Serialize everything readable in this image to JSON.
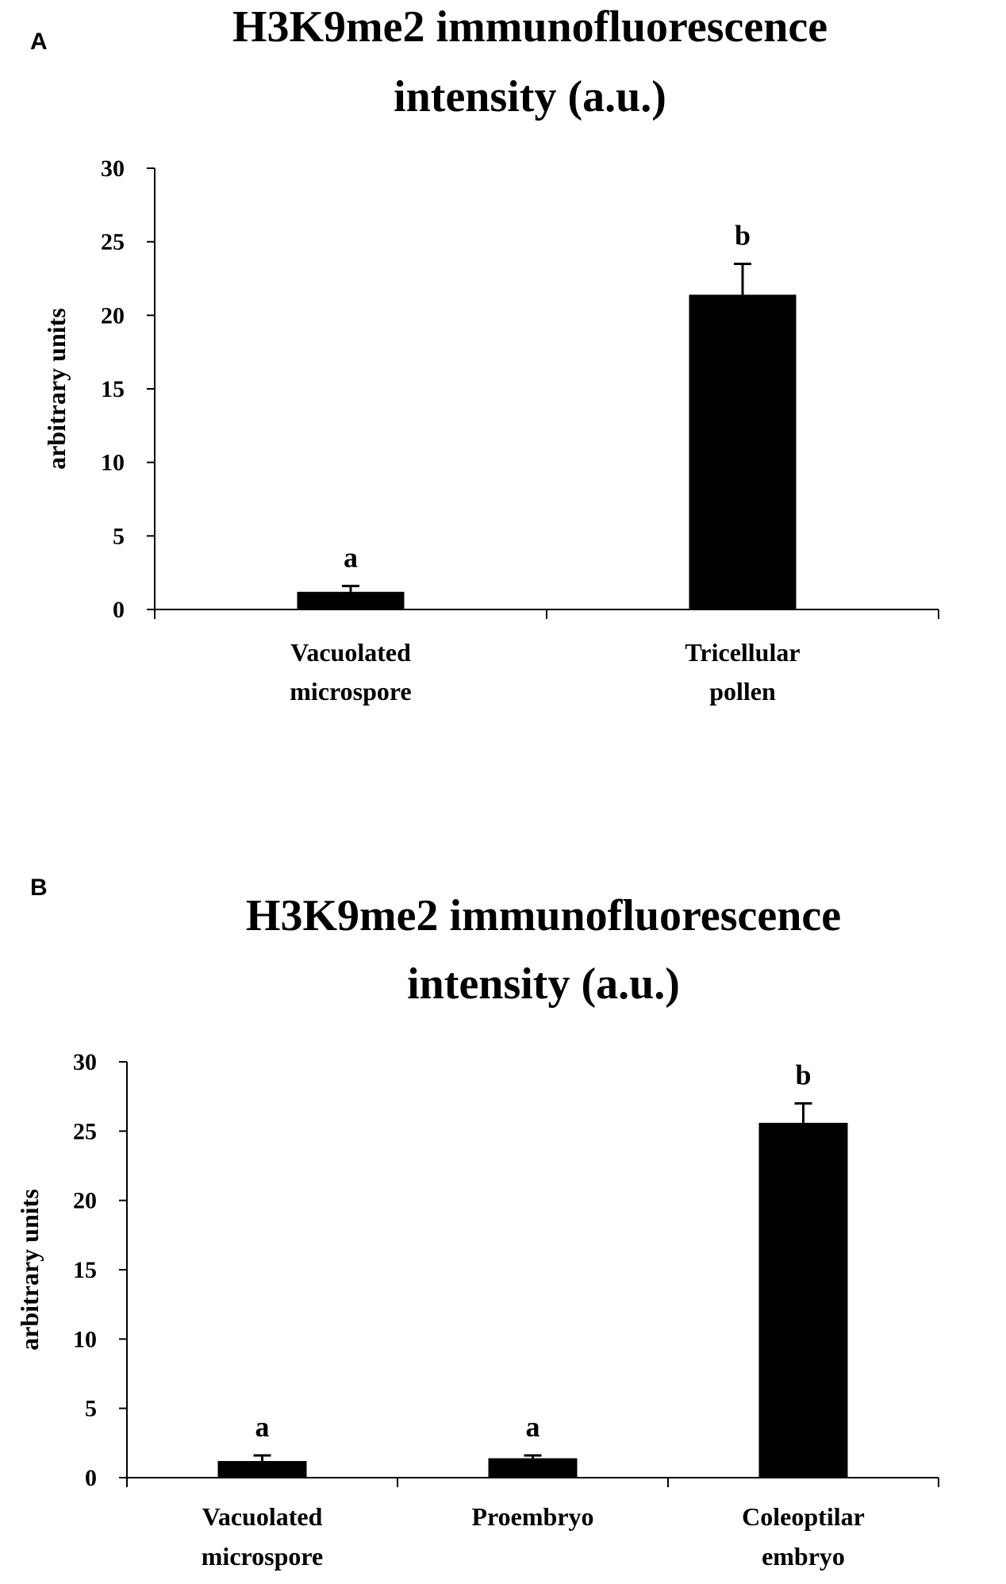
{
  "chart_data": [
    {
      "panel": "A",
      "type": "bar",
      "title_lines": [
        "H3K9me2 immunofluorescence",
        "intensity (a.u.)"
      ],
      "ylabel": "arbitrary units",
      "ylim": [
        0,
        30
      ],
      "yticks": [
        0,
        5,
        10,
        15,
        20,
        25,
        30
      ],
      "categories": [
        [
          "Vacuolated",
          "microspore"
        ],
        [
          "Tricellular",
          "pollen"
        ]
      ],
      "values": [
        1.2,
        21.4
      ],
      "errors": [
        0.4,
        2.1
      ],
      "significance": [
        "a",
        "b"
      ],
      "bar_color": "#000000"
    },
    {
      "panel": "B",
      "type": "bar",
      "title_lines": [
        "H3K9me2 immunofluorescence",
        "intensity (a.u.)"
      ],
      "ylabel": "arbitrary units",
      "ylim": [
        0,
        30
      ],
      "yticks": [
        0,
        5,
        10,
        15,
        20,
        25,
        30
      ],
      "categories": [
        [
          "Vacuolated",
          "microspore"
        ],
        [
          "Proembryo"
        ],
        [
          "Coleoptilar",
          "embryo"
        ]
      ],
      "values": [
        1.2,
        1.4,
        25.6
      ],
      "errors": [
        0.4,
        0.2,
        1.4
      ],
      "significance": [
        "a",
        "a",
        "b"
      ],
      "bar_color": "#000000"
    }
  ]
}
